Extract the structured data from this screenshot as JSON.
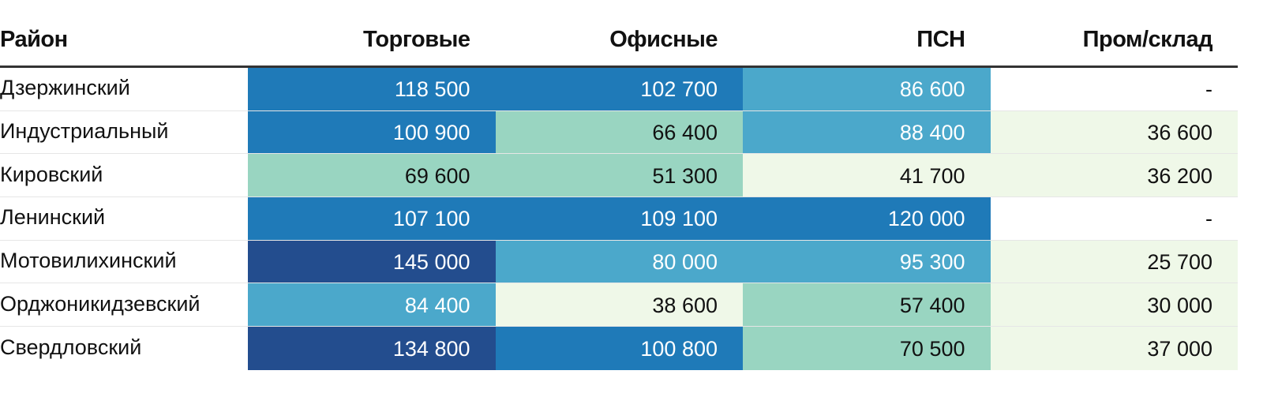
{
  "header": [
    "Район",
    "Торговые",
    "Офисные",
    "ПСН",
    "Пром/склад"
  ],
  "rows": [
    {
      "name": "Дзержинский",
      "values": [
        "118 500",
        "102 700",
        "86 600",
        "-"
      ],
      "levels": [
        3,
        3,
        2,
        0
      ]
    },
    {
      "name": "Индустриальный",
      "values": [
        "100 900",
        "66 400",
        "88 400",
        "36 600"
      ],
      "levels": [
        3,
        1,
        2,
        0
      ]
    },
    {
      "name": "Кировский",
      "values": [
        "69 600",
        "51 300",
        "41 700",
        "36 200"
      ],
      "levels": [
        1,
        1,
        0,
        0
      ]
    },
    {
      "name": "Ленинский",
      "values": [
        "107 100",
        "109 100",
        "120 000",
        "-"
      ],
      "levels": [
        3,
        3,
        3,
        0
      ]
    },
    {
      "name": "Мотовилихинский",
      "values": [
        "145 000",
        "80 000",
        "95 300",
        "25 700"
      ],
      "levels": [
        4,
        2,
        2,
        0
      ]
    },
    {
      "name": "Орджоникидзевский",
      "values": [
        "84 400",
        "38 600",
        "57 400",
        "30 000"
      ],
      "levels": [
        2,
        0,
        1,
        0
      ]
    },
    {
      "name": "Свердловский",
      "values": [
        "134 800",
        "100 800",
        "70 500",
        "37 000"
      ],
      "levels": [
        4,
        3,
        1,
        0
      ]
    }
  ],
  "palette": {
    "level_bg": [
      "#eff8e8",
      "#99d5c1",
      "#4ba8cb",
      "#1f7ab8",
      "#234d8e"
    ],
    "level_text": [
      "#111111",
      "#111111",
      "#ffffff",
      "#ffffff",
      "#ffffff"
    ],
    "dash_bg": "#ffffff",
    "dash_text": "#111111"
  }
}
